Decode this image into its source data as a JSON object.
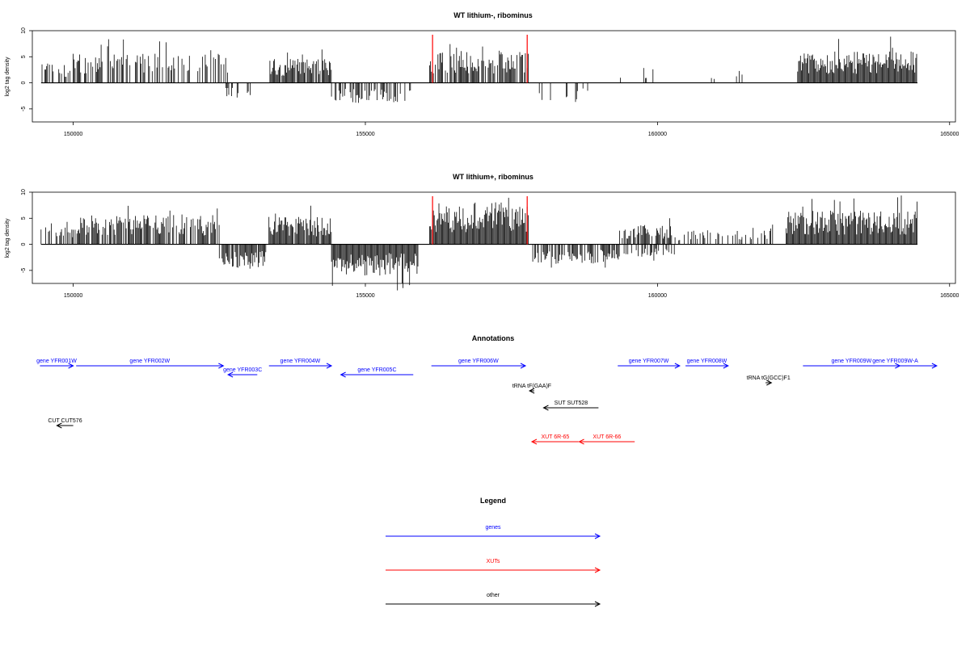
{
  "chart_data": [
    {
      "type": "bar",
      "title": "WT lithium-, ribominus",
      "ylabel": "log2 tag density",
      "xlim": [
        149300,
        165100
      ],
      "ylim": [
        -7.5,
        10
      ],
      "yticks": [
        -5,
        0,
        5,
        10
      ],
      "xticks": [
        150000,
        155000,
        160000,
        165000
      ],
      "grid": false,
      "data_range": [
        149450,
        164450
      ],
      "markers": [
        156150,
        157770
      ],
      "segments": [
        {
          "from": 149450,
          "to": 149950,
          "dir": 1,
          "density": 0.6,
          "amp": 3.2
        },
        {
          "from": 150000,
          "to": 152650,
          "dir": 1,
          "density": 0.45,
          "amp": 4.5
        },
        {
          "from": 152550,
          "to": 153100,
          "dir": -1,
          "density": 0.35,
          "amp": 2.6
        },
        {
          "from": 153350,
          "to": 154420,
          "dir": 1,
          "density": 0.9,
          "amp": 3.8
        },
        {
          "from": 154420,
          "to": 155780,
          "dir": -1,
          "density": 0.6,
          "amp": 3.2
        },
        {
          "from": 156100,
          "to": 157800,
          "dir": 1,
          "density": 0.8,
          "amp": 5.0
        },
        {
          "from": 157850,
          "to": 158900,
          "dir": -1,
          "density": 0.1,
          "amp": 3.0
        },
        {
          "from": 159350,
          "to": 160150,
          "dir": 1,
          "density": 0.12,
          "amp": 1.8
        },
        {
          "from": 160700,
          "to": 161500,
          "dir": 1,
          "density": 0.12,
          "amp": 2.0
        },
        {
          "from": 162400,
          "to": 164450,
          "dir": 1,
          "density": 1.0,
          "amp": 4.8
        }
      ]
    },
    {
      "type": "bar",
      "title": "WT lithium+, ribominus",
      "ylabel": "log2 tag density",
      "xlim": [
        149300,
        165100
      ],
      "ylim": [
        -7.5,
        10
      ],
      "yticks": [
        -5,
        0,
        5,
        10
      ],
      "xticks": [
        150000,
        155000,
        160000,
        165000
      ],
      "grid": false,
      "data_range": [
        149450,
        164450
      ],
      "markers": [
        156150,
        157770
      ],
      "segments": [
        {
          "from": 149450,
          "to": 150000,
          "dir": 1,
          "density": 0.5,
          "amp": 2.8
        },
        {
          "from": 150000,
          "to": 152550,
          "dir": 1,
          "density": 0.7,
          "amp": 4.5
        },
        {
          "from": 152500,
          "to": 153300,
          "dir": -1,
          "density": 0.85,
          "amp": 3.6
        },
        {
          "from": 153350,
          "to": 154420,
          "dir": 1,
          "density": 0.95,
          "amp": 4.2
        },
        {
          "from": 154420,
          "to": 155900,
          "dir": -1,
          "density": 1.0,
          "amp": 4.8
        },
        {
          "from": 156100,
          "to": 157800,
          "dir": 1,
          "density": 1.0,
          "amp": 6.5
        },
        {
          "from": 157850,
          "to": 159350,
          "dir": -1,
          "density": 0.7,
          "amp": 3.0
        },
        {
          "from": 159350,
          "to": 160300,
          "dir": 1,
          "density": 0.7,
          "amp": 3.0
        },
        {
          "from": 159350,
          "to": 160300,
          "dir": -1,
          "density": 0.5,
          "amp": 2.2
        },
        {
          "from": 160300,
          "to": 162000,
          "dir": 1,
          "density": 0.35,
          "amp": 2.2
        },
        {
          "from": 162200,
          "to": 164450,
          "dir": 1,
          "density": 1.0,
          "amp": 5.2
        }
      ]
    }
  ],
  "annotations": {
    "title": "Annotations",
    "items": [
      {
        "label": "gene YFR001W",
        "type": "gene",
        "start": 149430,
        "end": 150000,
        "dir": "right",
        "row": 0
      },
      {
        "label": "gene YFR002W",
        "type": "gene",
        "start": 150050,
        "end": 152570,
        "dir": "right",
        "row": 0
      },
      {
        "label": "gene YFR003C",
        "type": "gene",
        "start": 152650,
        "end": 153150,
        "dir": "left",
        "row": 1
      },
      {
        "label": "gene YFR004W",
        "type": "gene",
        "start": 153350,
        "end": 154420,
        "dir": "right",
        "row": 0
      },
      {
        "label": "gene YFR005C",
        "type": "gene",
        "start": 154580,
        "end": 155820,
        "dir": "left",
        "row": 1
      },
      {
        "label": "gene YFR006W",
        "type": "gene",
        "start": 156130,
        "end": 157740,
        "dir": "right",
        "row": 0
      },
      {
        "label": "tRNA tF(GAA)F",
        "type": "other",
        "start": 157810,
        "end": 157890,
        "dir": "left",
        "row": 2
      },
      {
        "label": "SUT SUT528",
        "type": "other",
        "start": 158050,
        "end": 158990,
        "dir": "left",
        "row": 3
      },
      {
        "label": "XUT 6R-65",
        "type": "xut",
        "start": 157850,
        "end": 158650,
        "dir": "left",
        "row": 4
      },
      {
        "label": "XUT 6R-66",
        "type": "xut",
        "start": 158660,
        "end": 159610,
        "dir": "left",
        "row": 4
      },
      {
        "label": "gene YFR007W",
        "type": "gene",
        "start": 159320,
        "end": 160380,
        "dir": "right",
        "row": 0
      },
      {
        "label": "gene YFR008W",
        "type": "gene",
        "start": 160480,
        "end": 161210,
        "dir": "right",
        "row": 0
      },
      {
        "label": "tRNA tG(GCC)F1",
        "type": "other",
        "start": 161850,
        "end": 161950,
        "dir": "right",
        "row": 1.5
      },
      {
        "label": "gene YFR009W",
        "type": "gene",
        "start": 162490,
        "end": 164150,
        "dir": "right",
        "row": 0
      },
      {
        "label": "gene YFR009W-A",
        "type": "gene",
        "start": 163360,
        "end": 164780,
        "dir": "right",
        "row": 0
      },
      {
        "label": "CUT CUT576",
        "type": "other",
        "start": 149720,
        "end": 150000,
        "dir": "left",
        "row": 5
      }
    ]
  },
  "legend": {
    "title": "Legend",
    "entries": [
      {
        "label": "genes",
        "color": "#0000ff"
      },
      {
        "label": "XUTs",
        "color": "#ff0000"
      },
      {
        "label": "other",
        "color": "#000000"
      }
    ]
  },
  "colors": {
    "gene": "#0000ff",
    "xut": "#ff0000",
    "other": "#000000",
    "marker": "#ff0000",
    "signal": "#000000"
  }
}
